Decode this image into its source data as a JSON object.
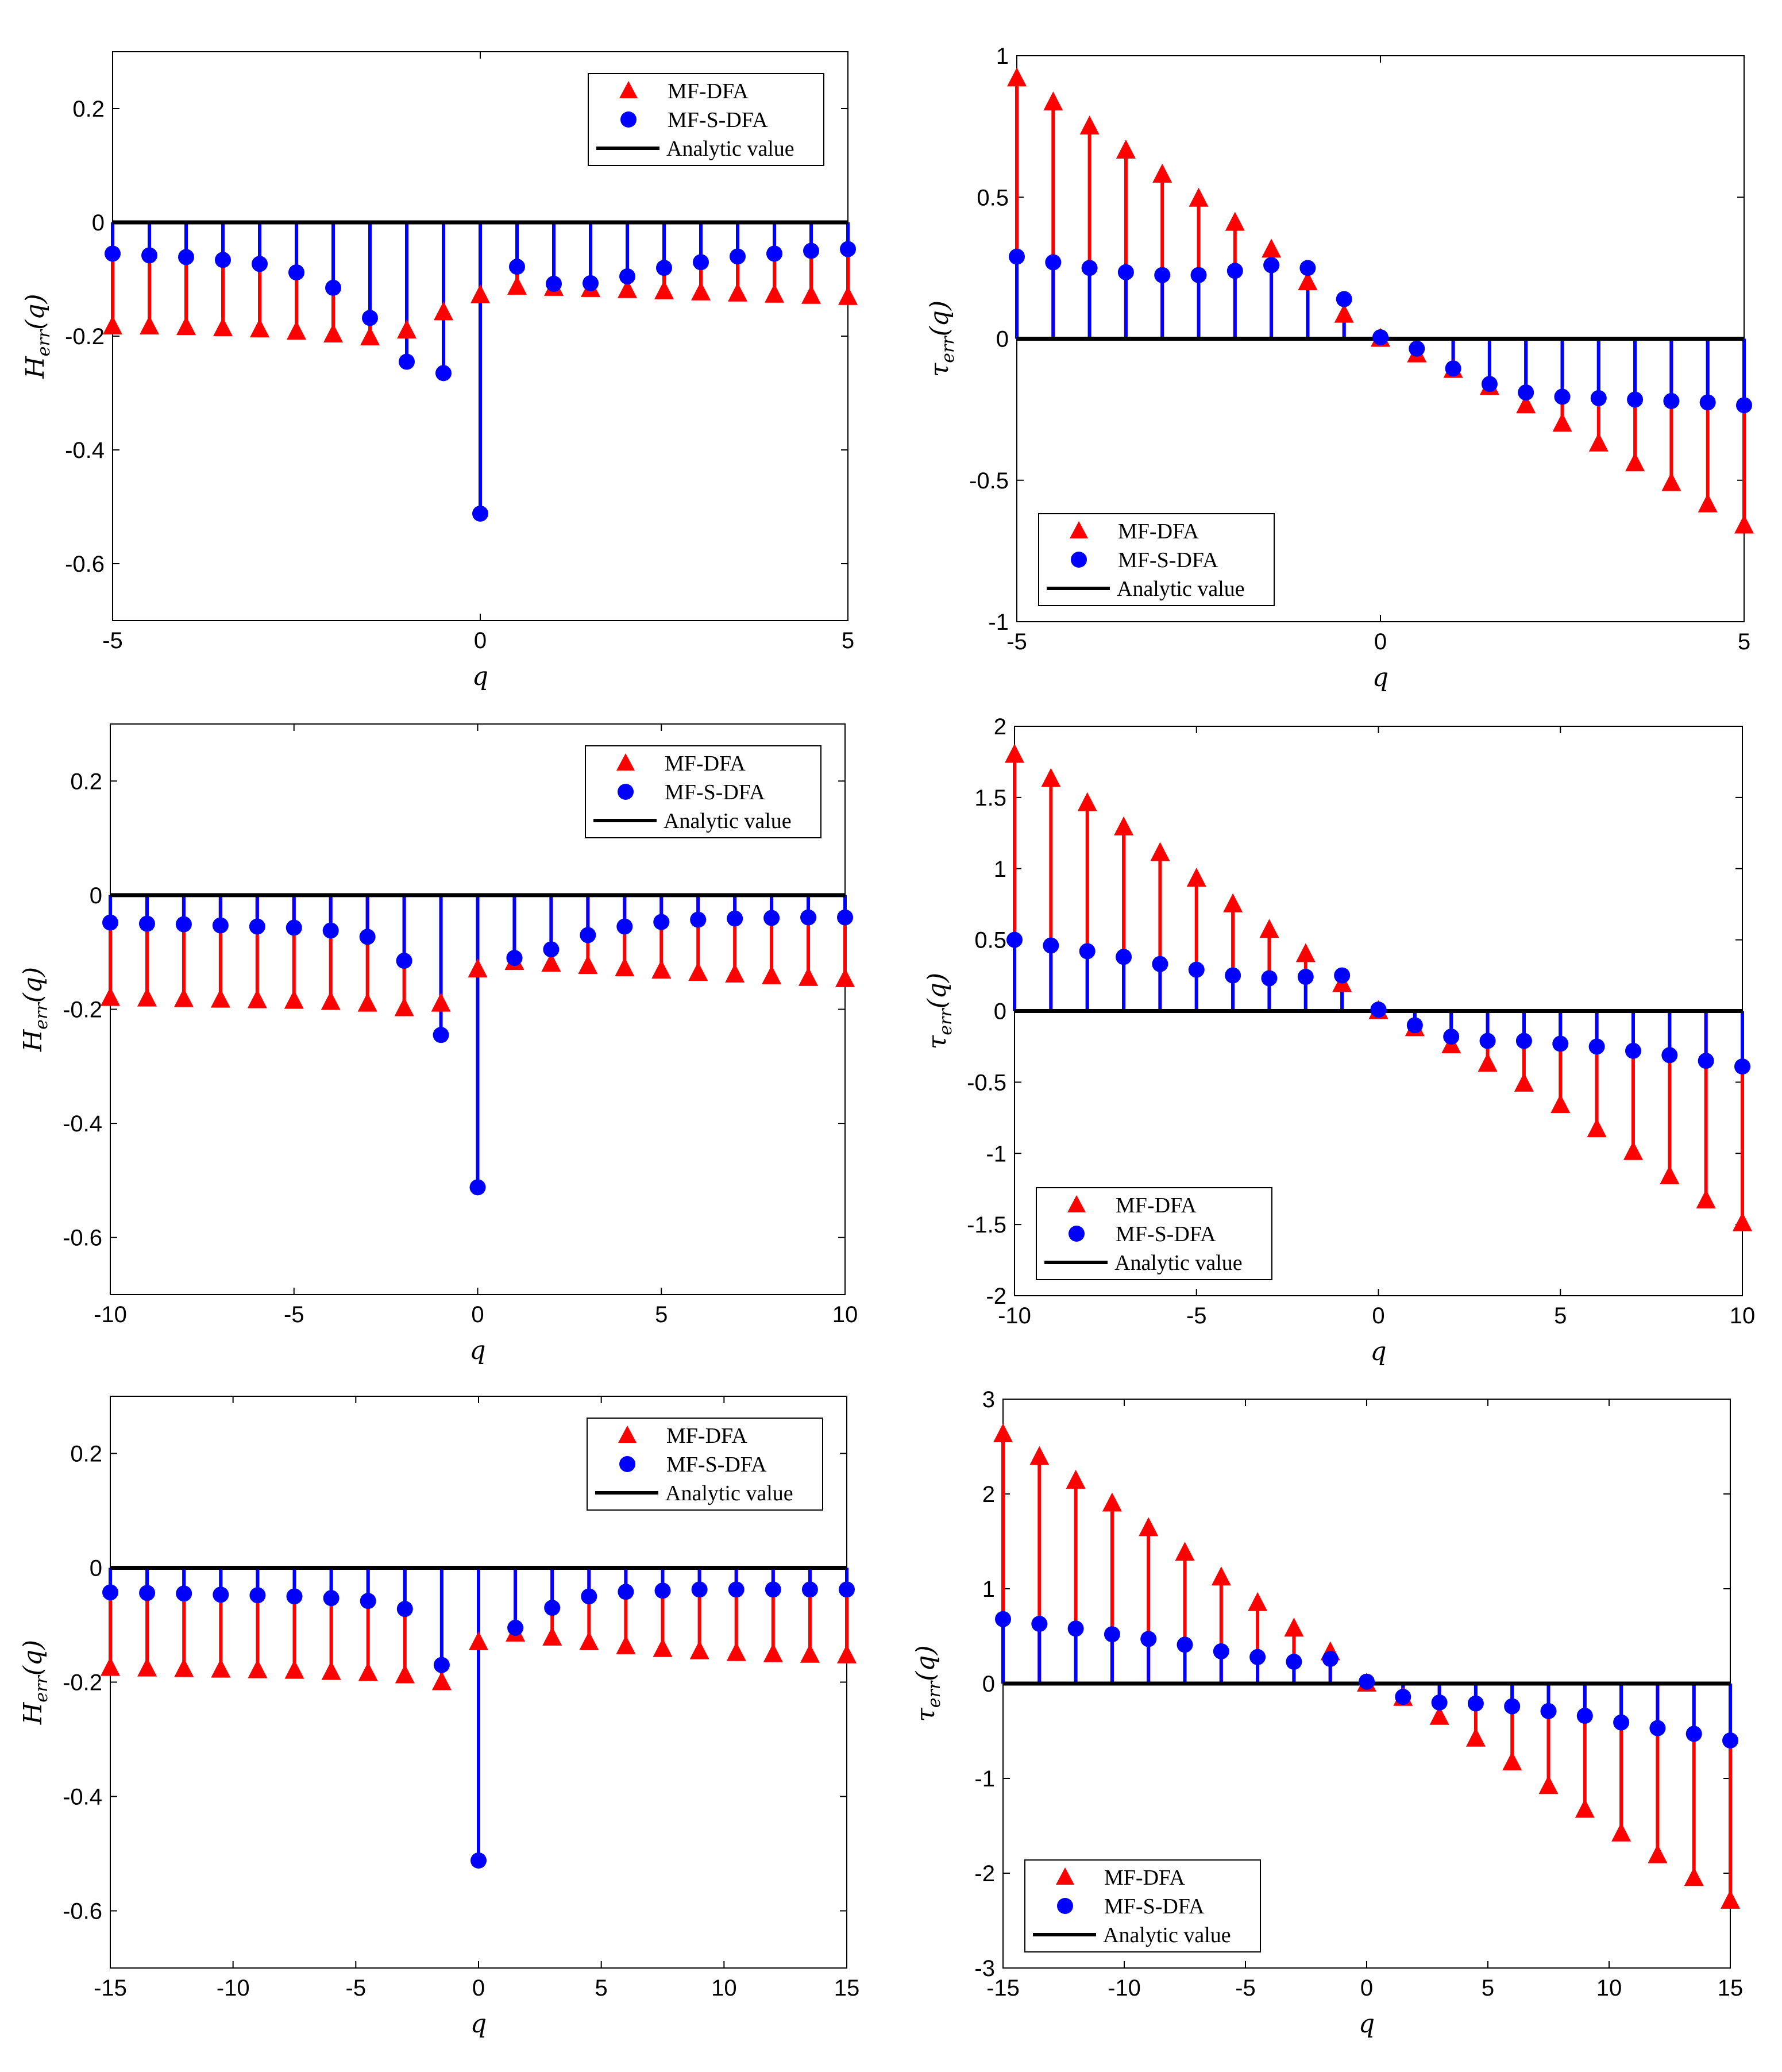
{
  "figure": {
    "legend_labels": [
      "MF-DFA",
      "MF-S-DFA",
      "Analytic value"
    ],
    "colors": {
      "mfdfa": "#ff0000",
      "mfsdfa": "#0000ff",
      "analytic": "#000000",
      "axes": "#000000"
    },
    "legend_icons": [
      "red-triangle-marker",
      "blue-circle-marker",
      "black-line"
    ]
  },
  "chart_data": [
    {
      "id": "H1",
      "type": "stem",
      "xlabel": "q",
      "ylabel_main": "H",
      "ylabel_sub": "err",
      "ylabel_suffix": "(q)",
      "xlim": [
        -5,
        5
      ],
      "ylim": [
        -0.7,
        0.3
      ],
      "xticks": [
        -5,
        0,
        5
      ],
      "xtick_labels": [
        "-5",
        "0",
        "5"
      ],
      "yticks": [
        -0.6,
        -0.4,
        -0.2,
        0,
        0.2
      ],
      "ytick_labels": [
        "-0.6",
        "-0.4",
        "-0.2",
        "0",
        "0.2"
      ],
      "legend_position": "top-right",
      "x": [
        -5,
        -4.5,
        -4,
        -3.5,
        -3,
        -2.5,
        -2,
        -1.5,
        -1,
        -0.5,
        0,
        0.5,
        1,
        1.5,
        2,
        2.5,
        3,
        3.5,
        4,
        4.5,
        5
      ],
      "series": [
        {
          "name": "MF-DFA",
          "values": [
            -0.183,
            -0.183,
            -0.184,
            -0.186,
            -0.188,
            -0.192,
            -0.197,
            -0.202,
            -0.19,
            -0.158,
            -0.128,
            -0.113,
            -0.115,
            -0.117,
            -0.119,
            -0.121,
            -0.123,
            -0.125,
            -0.127,
            -0.129,
            -0.131
          ]
        },
        {
          "name": "MF-S-DFA",
          "values": [
            -0.055,
            -0.058,
            -0.061,
            -0.066,
            -0.073,
            -0.088,
            -0.115,
            -0.168,
            -0.245,
            -0.265,
            -0.512,
            -0.078,
            -0.108,
            -0.107,
            -0.095,
            -0.08,
            -0.07,
            -0.06,
            -0.055,
            -0.05,
            -0.047
          ]
        },
        {
          "name": "Analytic value",
          "values": [
            0,
            0,
            0,
            0,
            0,
            0,
            0,
            0,
            0,
            0,
            0,
            0,
            0,
            0,
            0,
            0,
            0,
            0,
            0,
            0,
            0
          ]
        }
      ]
    },
    {
      "id": "T1",
      "type": "stem",
      "xlabel": "q",
      "ylabel_main": "τ",
      "ylabel_sub": "err",
      "ylabel_suffix": "(q)",
      "xlim": [
        -5,
        5
      ],
      "ylim": [
        -1,
        1
      ],
      "xticks": [
        -5,
        0,
        5
      ],
      "xtick_labels": [
        "-5",
        "0",
        "5"
      ],
      "yticks": [
        -1,
        -0.5,
        0,
        0.5,
        1
      ],
      "ytick_labels": [
        "-1",
        "-0.5",
        "0",
        "0.5",
        "1"
      ],
      "legend_position": "bottom-left",
      "x": [
        -5,
        -4.5,
        -4,
        -3.5,
        -3,
        -2.5,
        -2,
        -1.5,
        -1,
        -0.5,
        0,
        0.5,
        1,
        1.5,
        2,
        2.5,
        3,
        3.5,
        4,
        4.5,
        5
      ],
      "series": [
        {
          "name": "MF-DFA",
          "values": [
            0.92,
            0.835,
            0.75,
            0.665,
            0.58,
            0.495,
            0.41,
            0.315,
            0.2,
            0.085,
            0,
            -0.055,
            -0.11,
            -0.17,
            -0.235,
            -0.3,
            -0.37,
            -0.44,
            -0.51,
            -0.585,
            -0.66
          ]
        },
        {
          "name": "MF-S-DFA",
          "values": [
            0.29,
            0.27,
            0.25,
            0.235,
            0.225,
            0.225,
            0.24,
            0.26,
            0.25,
            0.14,
            0.005,
            -0.035,
            -0.105,
            -0.16,
            -0.19,
            -0.205,
            -0.21,
            -0.215,
            -0.22,
            -0.225,
            -0.235
          ]
        },
        {
          "name": "Analytic value",
          "values": [
            0,
            0,
            0,
            0,
            0,
            0,
            0,
            0,
            0,
            0,
            0,
            0,
            0,
            0,
            0,
            0,
            0,
            0,
            0,
            0,
            0
          ]
        }
      ]
    },
    {
      "id": "H2",
      "type": "stem",
      "xlabel": "q",
      "ylabel_main": "H",
      "ylabel_sub": "err",
      "ylabel_suffix": "(q)",
      "xlim": [
        -10,
        10
      ],
      "ylim": [
        -0.7,
        0.3
      ],
      "xticks": [
        -10,
        -5,
        0,
        5,
        10
      ],
      "xtick_labels": [
        "-10",
        "-5",
        "0",
        "5",
        "10"
      ],
      "yticks": [
        -0.6,
        -0.4,
        -0.2,
        0,
        0.2
      ],
      "ytick_labels": [
        "-0.6",
        "-0.4",
        "-0.2",
        "0",
        "0.2"
      ],
      "legend_position": "top-right",
      "x": [
        -10,
        -9,
        -8,
        -7,
        -6,
        -5,
        -4,
        -3,
        -2,
        -1,
        0,
        1,
        2,
        3,
        4,
        5,
        6,
        7,
        8,
        9,
        10
      ],
      "series": [
        {
          "name": "MF-DFA",
          "values": [
            -0.18,
            -0.181,
            -0.182,
            -0.183,
            -0.184,
            -0.185,
            -0.187,
            -0.19,
            -0.198,
            -0.19,
            -0.13,
            -0.117,
            -0.12,
            -0.124,
            -0.128,
            -0.132,
            -0.136,
            -0.139,
            -0.142,
            -0.145,
            -0.147
          ]
        },
        {
          "name": "MF-S-DFA",
          "values": [
            -0.048,
            -0.05,
            -0.051,
            -0.053,
            -0.055,
            -0.057,
            -0.062,
            -0.073,
            -0.115,
            -0.245,
            -0.512,
            -0.11,
            -0.095,
            -0.07,
            -0.055,
            -0.047,
            -0.043,
            -0.041,
            -0.04,
            -0.039,
            -0.039
          ]
        },
        {
          "name": "Analytic value",
          "values": [
            0,
            0,
            0,
            0,
            0,
            0,
            0,
            0,
            0,
            0,
            0,
            0,
            0,
            0,
            0,
            0,
            0,
            0,
            0,
            0,
            0
          ]
        }
      ]
    },
    {
      "id": "T2",
      "type": "stem",
      "xlabel": "q",
      "ylabel_main": "τ",
      "ylabel_sub": "err",
      "ylabel_suffix": "(q)",
      "xlim": [
        -10,
        10
      ],
      "ylim": [
        -2,
        2
      ],
      "xticks": [
        -10,
        -5,
        0,
        5,
        10
      ],
      "xtick_labels": [
        "-10",
        "-5",
        "0",
        "5",
        "10"
      ],
      "yticks": [
        -2,
        -1.5,
        -1,
        -0.5,
        0,
        0.5,
        1,
        1.5,
        2
      ],
      "ytick_labels": [
        "-2",
        "-1.5",
        "-1",
        "-0.5",
        "0",
        "0.5",
        "1",
        "1.5",
        "2"
      ],
      "legend_position": "bottom-left",
      "x": [
        -10,
        -9,
        -8,
        -7,
        -6,
        -5,
        -4,
        -3,
        -2,
        -1,
        0,
        1,
        2,
        3,
        4,
        5,
        6,
        7,
        8,
        9,
        10
      ],
      "series": [
        {
          "name": "MF-DFA",
          "values": [
            1.8,
            1.63,
            1.46,
            1.29,
            1.11,
            0.93,
            0.75,
            0.57,
            0.4,
            0.19,
            0,
            -0.12,
            -0.24,
            -0.37,
            -0.51,
            -0.66,
            -0.83,
            -0.99,
            -1.16,
            -1.33,
            -1.49
          ]
        },
        {
          "name": "MF-S-DFA",
          "values": [
            0.5,
            0.46,
            0.42,
            0.38,
            0.33,
            0.29,
            0.25,
            0.23,
            0.24,
            0.25,
            0.01,
            -0.1,
            -0.18,
            -0.21,
            -0.21,
            -0.23,
            -0.25,
            -0.28,
            -0.31,
            -0.35,
            -0.39
          ]
        },
        {
          "name": "Analytic value",
          "values": [
            0,
            0,
            0,
            0,
            0,
            0,
            0,
            0,
            0,
            0,
            0,
            0,
            0,
            0,
            0,
            0,
            0,
            0,
            0,
            0,
            0
          ]
        }
      ]
    },
    {
      "id": "H3",
      "type": "stem",
      "xlabel": "q",
      "ylabel_main": "H",
      "ylabel_sub": "err",
      "ylabel_suffix": "(q)",
      "xlim": [
        -15,
        15
      ],
      "ylim": [
        -0.7,
        0.3
      ],
      "xticks": [
        -15,
        -10,
        -5,
        0,
        5,
        10,
        15
      ],
      "xtick_labels": [
        "-15",
        "-10",
        "-5",
        "0",
        "5",
        "10",
        "15"
      ],
      "yticks": [
        -0.6,
        -0.4,
        -0.2,
        0,
        0.2
      ],
      "ytick_labels": [
        "-0.6",
        "-0.4",
        "-0.2",
        "0",
        "0.2"
      ],
      "legend_position": "top-right",
      "x": [
        -15,
        -13.5,
        -12,
        -10.5,
        -9,
        -7.5,
        -6,
        -4.5,
        -3,
        -1.5,
        0,
        1.5,
        3,
        4.5,
        6,
        7.5,
        9,
        10.5,
        12,
        13.5,
        15
      ],
      "series": [
        {
          "name": "MF-DFA",
          "values": [
            -0.175,
            -0.176,
            -0.177,
            -0.178,
            -0.179,
            -0.18,
            -0.182,
            -0.184,
            -0.188,
            -0.2,
            -0.13,
            -0.115,
            -0.122,
            -0.13,
            -0.137,
            -0.142,
            -0.146,
            -0.149,
            -0.151,
            -0.152,
            -0.153
          ]
        },
        {
          "name": "MF-S-DFA",
          "values": [
            -0.043,
            -0.044,
            -0.045,
            -0.047,
            -0.048,
            -0.05,
            -0.053,
            -0.058,
            -0.072,
            -0.17,
            -0.512,
            -0.105,
            -0.07,
            -0.05,
            -0.042,
            -0.04,
            -0.038,
            -0.038,
            -0.038,
            -0.038,
            -0.038
          ]
        },
        {
          "name": "Analytic value",
          "values": [
            0,
            0,
            0,
            0,
            0,
            0,
            0,
            0,
            0,
            0,
            0,
            0,
            0,
            0,
            0,
            0,
            0,
            0,
            0,
            0,
            0
          ]
        }
      ]
    },
    {
      "id": "T3",
      "type": "stem",
      "xlabel": "q",
      "ylabel_main": "τ",
      "ylabel_sub": "err",
      "ylabel_suffix": "(q)",
      "xlim": [
        -15,
        15
      ],
      "ylim": [
        -3,
        3
      ],
      "xticks": [
        -15,
        -10,
        -5,
        0,
        5,
        10,
        15
      ],
      "xtick_labels": [
        "-15",
        "-10",
        "-5",
        "0",
        "5",
        "10",
        "15"
      ],
      "yticks": [
        -3,
        -2,
        -1,
        0,
        1,
        2,
        3
      ],
      "ytick_labels": [
        "-3",
        "-2",
        "-1",
        "0",
        "1",
        "2",
        "3"
      ],
      "legend_position": "bottom-left",
      "x": [
        -15,
        -13.5,
        -12,
        -10.5,
        -9,
        -7.5,
        -6,
        -4.5,
        -3,
        -1.5,
        0,
        1.5,
        3,
        4.5,
        6,
        7.5,
        9,
        10.5,
        12,
        13.5,
        15
      ],
      "series": [
        {
          "name": "MF-DFA",
          "values": [
            2.63,
            2.39,
            2.14,
            1.9,
            1.64,
            1.38,
            1.12,
            0.85,
            0.58,
            0.33,
            0,
            -0.15,
            -0.35,
            -0.58,
            -0.83,
            -1.08,
            -1.33,
            -1.58,
            -1.81,
            -2.05,
            -2.29
          ]
        },
        {
          "name": "MF-S-DFA",
          "values": [
            0.68,
            0.63,
            0.58,
            0.52,
            0.47,
            0.41,
            0.34,
            0.28,
            0.23,
            0.26,
            0.02,
            -0.14,
            -0.2,
            -0.21,
            -0.24,
            -0.29,
            -0.34,
            -0.41,
            -0.47,
            -0.53,
            -0.6
          ]
        },
        {
          "name": "Analytic value",
          "values": [
            0,
            0,
            0,
            0,
            0,
            0,
            0,
            0,
            0,
            0,
            0,
            0,
            0,
            0,
            0,
            0,
            0,
            0,
            0,
            0,
            0
          ]
        }
      ]
    }
  ]
}
